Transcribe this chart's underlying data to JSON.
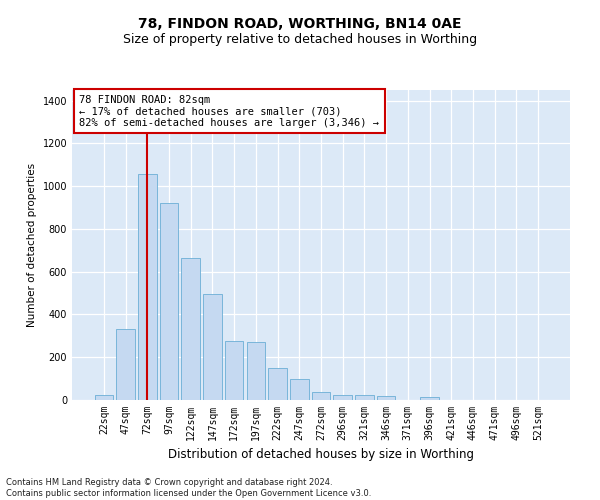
{
  "title": "78, FINDON ROAD, WORTHING, BN14 0AE",
  "subtitle": "Size of property relative to detached houses in Worthing",
  "xlabel": "Distribution of detached houses by size in Worthing",
  "ylabel": "Number of detached properties",
  "categories": [
    "22sqm",
    "47sqm",
    "72sqm",
    "97sqm",
    "122sqm",
    "147sqm",
    "172sqm",
    "197sqm",
    "222sqm",
    "247sqm",
    "272sqm",
    "296sqm",
    "321sqm",
    "346sqm",
    "371sqm",
    "396sqm",
    "421sqm",
    "446sqm",
    "471sqm",
    "496sqm",
    "521sqm"
  ],
  "values": [
    22,
    330,
    1055,
    920,
    665,
    498,
    275,
    270,
    150,
    100,
    38,
    25,
    22,
    18,
    0,
    12,
    0,
    0,
    0,
    0,
    0
  ],
  "bar_color": "#c5d9f1",
  "bar_edge_color": "#6baed6",
  "highlight_color": "#cc0000",
  "vline_x": 2,
  "annotation_text": "78 FINDON ROAD: 82sqm\n← 17% of detached houses are smaller (703)\n82% of semi-detached houses are larger (3,346) →",
  "annotation_box_color": "#ffffff",
  "annotation_box_edge_color": "#cc0000",
  "ylim": [
    0,
    1450
  ],
  "yticks": [
    0,
    200,
    400,
    600,
    800,
    1000,
    1200,
    1400
  ],
  "footnote": "Contains HM Land Registry data © Crown copyright and database right 2024.\nContains public sector information licensed under the Open Government Licence v3.0.",
  "bg_color": "#dce9f7",
  "grid_color": "#ffffff",
  "title_fontsize": 10,
  "subtitle_fontsize": 9,
  "xlabel_fontsize": 8.5,
  "ylabel_fontsize": 7.5,
  "tick_fontsize": 7,
  "annotation_fontsize": 7.5,
  "footnote_fontsize": 6
}
